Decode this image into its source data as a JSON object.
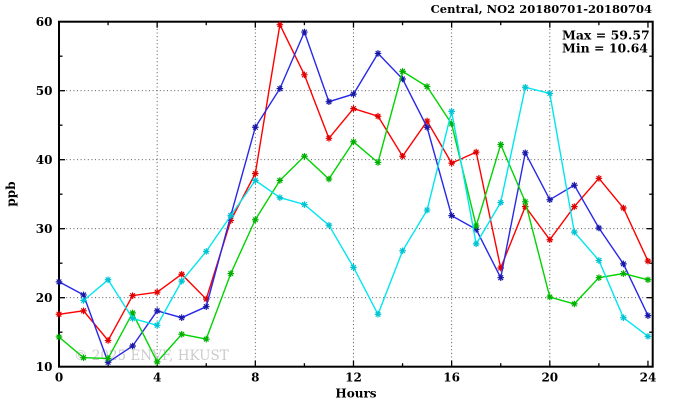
{
  "title": "Central, NO2 20180701-20180704",
  "annotation": {
    "max_label": "Max = 59.57",
    "min_label": "Min = 10.64"
  },
  "watermark": "© 2025 ENVF, HKUST",
  "chart_data": {
    "type": "line",
    "title": "Central, NO2 20180701-20180704",
    "xlabel": "Hours",
    "ylabel": "ppb",
    "xlim": [
      0,
      24
    ],
    "ylim": [
      10,
      60
    ],
    "grid": "dotted",
    "legend_position": "none",
    "x_ticks_major": [
      0,
      4,
      8,
      12,
      16,
      20,
      24
    ],
    "x_ticks_minor": [
      2,
      6,
      10,
      14,
      18,
      22
    ],
    "y_ticks_major": [
      10,
      20,
      30,
      40,
      50,
      60
    ],
    "y_ticks_minor": [
      15,
      25,
      35,
      45,
      55
    ],
    "grid_x": [
      4,
      8,
      12,
      16,
      20
    ],
    "grid_y": [
      20,
      30,
      40,
      50
    ],
    "max_value": 59.57,
    "min_value": 10.64,
    "x": [
      0,
      1,
      2,
      3,
      4,
      5,
      6,
      7,
      8,
      9,
      10,
      11,
      12,
      13,
      14,
      15,
      16,
      17,
      18,
      19,
      20,
      21,
      22,
      23,
      24
    ],
    "series": [
      {
        "name": "red",
        "line_color": "#ff0000",
        "marker_color": "#e00000",
        "values": [
          17.6,
          18.1,
          13.8,
          20.3,
          20.8,
          23.4,
          19.8,
          31.2,
          38.0,
          59.57,
          52.3,
          43.1,
          47.4,
          46.3,
          40.5,
          45.6,
          39.5,
          41.1,
          24.3,
          33.2,
          28.4,
          33.2,
          37.3,
          33.0,
          25.3
        ]
      },
      {
        "name": "blue",
        "line_color": "#2828e8",
        "marker_color": "#1818a8",
        "values": [
          22.3,
          20.4,
          10.64,
          13.0,
          18.1,
          17.1,
          18.7,
          31.9,
          44.7,
          50.3,
          58.5,
          48.4,
          49.5,
          55.4,
          51.7,
          44.7,
          31.9,
          29.9,
          22.9,
          41.0,
          34.2,
          36.3,
          30.1,
          24.9,
          17.4
        ]
      },
      {
        "name": "green",
        "line_color": "#00d400",
        "marker_color": "#00b000",
        "values": [
          14.3,
          11.3,
          11.2,
          17.8,
          10.7,
          14.7,
          14.0,
          23.5,
          31.3,
          37.0,
          40.5,
          37.2,
          42.6,
          39.6,
          52.8,
          50.6,
          45.2,
          30.4,
          42.2,
          33.9,
          20.1,
          19.1,
          22.9,
          23.5,
          22.6
        ]
      },
      {
        "name": "cyan",
        "line_color": "#00e6ee",
        "marker_color": "#00c4d4",
        "values": [
          null,
          19.6,
          22.6,
          17.0,
          16.0,
          22.4,
          26.7,
          31.9,
          37.0,
          34.5,
          33.5,
          30.5,
          24.4,
          17.6,
          26.8,
          32.7,
          47.0,
          27.8,
          33.8,
          50.5,
          49.6,
          29.5,
          25.4,
          17.1,
          14.4
        ]
      }
    ]
  }
}
